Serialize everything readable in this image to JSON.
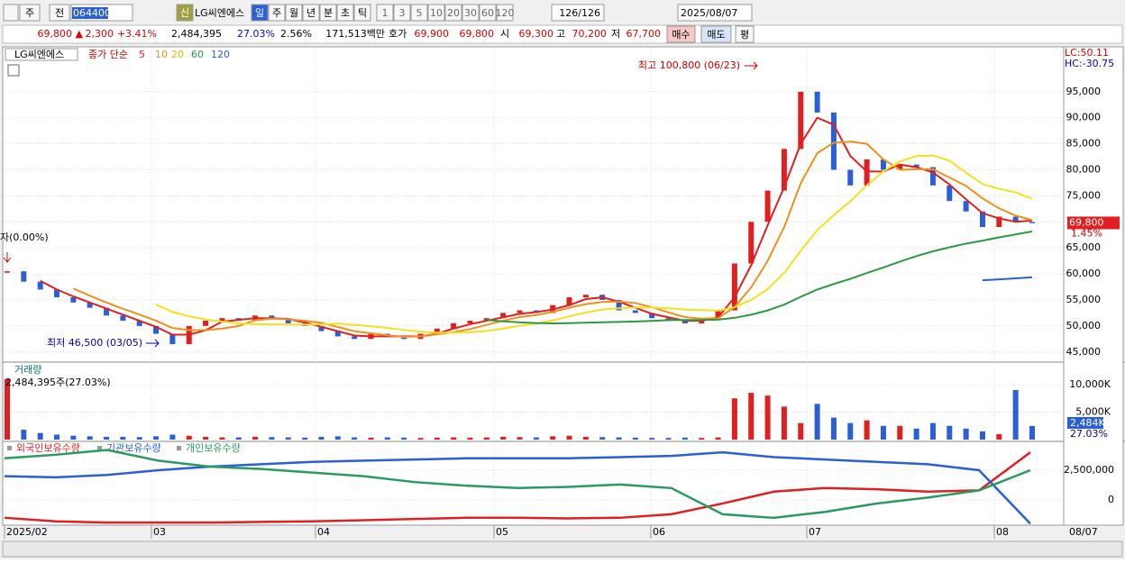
{
  "toolbar": {
    "period_tab": "주",
    "market": "전",
    "code": "064400",
    "new_badge": "신",
    "name": "LG씨엔에스",
    "periods": [
      "일",
      "주",
      "월",
      "년",
      "분",
      "초",
      "틱"
    ],
    "intervals": [
      "1",
      "3",
      "5",
      "10",
      "20",
      "30",
      "60",
      "120"
    ],
    "count": "126/126",
    "date": "2025/08/07"
  },
  "quote_bar": {
    "price": "69,800 ▲",
    "change": "2,300",
    "change_rate": "+3.41%",
    "volume": "2,484,395",
    "turnover": "27.03%",
    "ratio": "2.56%",
    "amount": "171,513백만",
    "ask_label": "호가",
    "ask": "69,900",
    "bid": "69,800",
    "open_label": "시",
    "open": "69,300",
    "high_label": "고",
    "high": "70,200",
    "low_label": "저",
    "low": "67,700",
    "buy": "매수",
    "sell": "매도",
    "avg": "평"
  },
  "price_panel": {
    "name": "LG씨엔에스",
    "ma_label": "종가 단순",
    "ma": [
      {
        "name": "5",
        "color": "#e02020"
      },
      {
        "name": "10",
        "color": "#f0901c"
      },
      {
        "name": "20",
        "color": "#f5e020"
      },
      {
        "name": "60",
        "color": "#2a9a40"
      },
      {
        "name": "120",
        "color": "#2a5fd8"
      }
    ],
    "high_note": "최고 100,800 (06/23)",
    "low_note": "최저 46,500 (03/05)",
    "left_note": "자(0.00%)",
    "lc": "LC:50.11",
    "hc": "HC:-30.75",
    "last_price": "69,800",
    "last_rate": "1.45%",
    "ylim": [
      43400,
      103100
    ],
    "yticks": [
      {
        "value": 95000,
        "label": "95,000"
      },
      {
        "value": 90000,
        "label": "90,000"
      },
      {
        "value": 85000,
        "label": "85,000"
      },
      {
        "value": 80000,
        "label": "80,000"
      },
      {
        "value": 75000,
        "label": "75,000"
      },
      {
        "value": 70000,
        "label": "70,000"
      },
      {
        "value": 65000,
        "label": "65,000"
      },
      {
        "value": 60000,
        "label": "60,000"
      },
      {
        "value": 55000,
        "label": "55,000"
      },
      {
        "value": 50000,
        "label": "50,000"
      },
      {
        "value": 45000,
        "label": "45,000"
      }
    ],
    "closes": [
      60500,
      58500,
      57000,
      55500,
      54500,
      53500,
      52000,
      51000,
      50000,
      48500,
      46500,
      50000,
      51000,
      51500,
      51000,
      52000,
      51500,
      50500,
      50000,
      49000,
      48000,
      47500,
      48500,
      48000,
      47500,
      48500,
      49500,
      50500,
      51000,
      51500,
      52500,
      53000,
      52500,
      54000,
      55500,
      56000,
      55000,
      53000,
      52500,
      51500,
      51000,
      50500,
      51500,
      53000,
      62000,
      70000,
      76000,
      84000,
      95000,
      91000,
      80000,
      77000,
      82000,
      80000,
      81000,
      80500,
      77000,
      74000,
      72000,
      69000,
      71000,
      70000,
      69800
    ]
  },
  "volume_panel": {
    "title": "거래량",
    "note": "2,484,395주(27.03%)",
    "last_label": "2,484K",
    "last_rate": "27.03%",
    "ylim": [
      0,
      13600
    ],
    "yticks": [
      {
        "value": 10000,
        "label": "10,000K"
      },
      {
        "value": 5000,
        "label": "5,000K"
      }
    ],
    "values": [
      11000,
      1800,
      1200,
      900,
      700,
      600,
      500,
      500,
      450,
      600,
      900,
      700,
      500,
      400,
      400,
      500,
      450,
      400,
      350,
      500,
      600,
      400,
      350,
      400,
      350,
      300,
      350,
      400,
      350,
      400,
      500,
      450,
      400,
      600,
      700,
      500,
      450,
      400,
      350,
      300,
      300,
      350,
      300,
      400,
      7500,
      8500,
      8000,
      6000,
      3000,
      6500,
      4000,
      3000,
      3500,
      2500,
      2500,
      2000,
      3000,
      2500,
      2000,
      1500,
      1000,
      9000,
      2484
    ]
  },
  "investor_panel": {
    "ylim": [
      -2120000,
      4770000
    ],
    "yticks": [
      {
        "value": 2500000,
        "label": "2,500,000"
      },
      0
    ],
    "series": [
      {
        "name": "외국인보유수량",
        "color": "#e02020",
        "values": [
          -1500000,
          -1800000,
          -1900000,
          -1900000,
          -1900000,
          -1850000,
          -1800000,
          -1700000,
          -1600000,
          -1500000,
          -1500000,
          -1550000,
          -1500000,
          -1200000,
          -300000,
          700000,
          1000000,
          900000,
          700000,
          800000,
          4000000
        ]
      },
      {
        "name": "기관보유수량",
        "color": "#2a5fd8",
        "values": [
          2000000,
          1900000,
          2100000,
          2500000,
          2800000,
          3000000,
          3200000,
          3300000,
          3400000,
          3500000,
          3500000,
          3500000,
          3600000,
          3700000,
          4000000,
          3600000,
          3400000,
          3200000,
          3000000,
          2500000,
          -2000000
        ]
      },
      {
        "name": "개인보유수량",
        "color": "#2a9a60",
        "values": [
          3500000,
          3800000,
          4200000,
          3300000,
          2800000,
          2600000,
          2300000,
          2000000,
          1500000,
          1200000,
          1000000,
          1100000,
          1300000,
          1000000,
          -1200000,
          -1500000,
          -1000000,
          -300000,
          200000,
          800000,
          2500000
        ]
      }
    ]
  },
  "x_axis": {
    "labels": [
      "2025/02",
      "03",
      "04",
      "05",
      "06",
      "07",
      "08"
    ],
    "last": "08/07"
  }
}
